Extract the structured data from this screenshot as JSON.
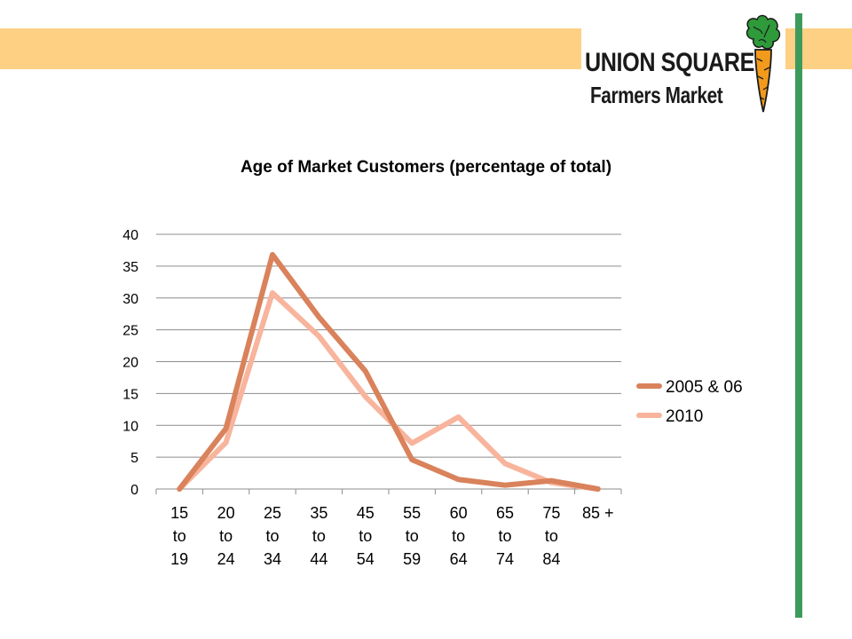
{
  "logo": {
    "line1": "UNION SQUARE",
    "line2": "Farmers Market"
  },
  "colors": {
    "banner": "#fdd083",
    "side_bar": "#3c9b5c",
    "series_2005": "#d9825b",
    "series_2010": "#f8b49c",
    "grid": "#8c8c8c"
  },
  "chart_data": {
    "type": "line",
    "title": "Age of Market Customers (percentage of total)",
    "xlabel": "",
    "ylabel": "",
    "ylim": [
      0,
      40
    ],
    "yticks": [
      "0",
      "5",
      "10",
      "15",
      "20",
      "25",
      "30",
      "35",
      "40"
    ],
    "grid": true,
    "legend_position": "right",
    "categories": [
      [
        "15",
        "to",
        "19"
      ],
      [
        "20",
        "to",
        "24"
      ],
      [
        "25",
        "to",
        "34"
      ],
      [
        "35",
        "to",
        "44"
      ],
      [
        "45",
        "to",
        "54"
      ],
      [
        "55",
        "to",
        "59"
      ],
      [
        "60",
        "to",
        "64"
      ],
      [
        "65",
        "to",
        "74"
      ],
      [
        "75",
        "to",
        "84"
      ],
      [
        "85 +"
      ]
    ],
    "series": [
      {
        "name": "2005 & 06",
        "color": "#d9825b",
        "values": [
          0,
          9.5,
          36.8,
          27,
          18.5,
          4.6,
          1.5,
          0.6,
          1.3,
          0
        ]
      },
      {
        "name": "2010",
        "color": "#f8b49c",
        "values": [
          0,
          7.3,
          30.8,
          24,
          14.5,
          7.2,
          11.3,
          4,
          1,
          0
        ]
      }
    ]
  }
}
